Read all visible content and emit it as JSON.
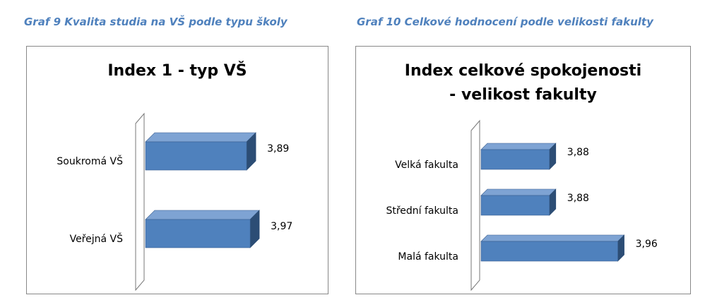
{
  "chart_data": [
    {
      "type": "bar3d",
      "caption": "Graf 9 Kvalita studia na VŠ podle typu školy",
      "title": "Index 1 - typ VŠ",
      "categories": [
        "Soukromá VŠ",
        "Veřejná VŠ"
      ],
      "values": [
        3.89,
        3.97
      ],
      "value_labels": [
        "3,89",
        "3,97"
      ],
      "color": "#4f81bd",
      "xlim": [
        1.6,
        4.4
      ]
    },
    {
      "type": "bar3d",
      "caption": "Graf 10 Celkové hodnocení podle velikosti fakulty",
      "title": "Index celkové spokojenosti - velikost fakulty",
      "categories": [
        "Velká fakulta",
        "Střední fakulta",
        "Malá fakulta"
      ],
      "values": [
        3.88,
        3.88,
        3.96
      ],
      "value_labels": [
        "3,88",
        "3,88",
        "3,96"
      ],
      "color": "#4f81bd",
      "xlim": [
        3.8,
        4.0
      ]
    }
  ]
}
